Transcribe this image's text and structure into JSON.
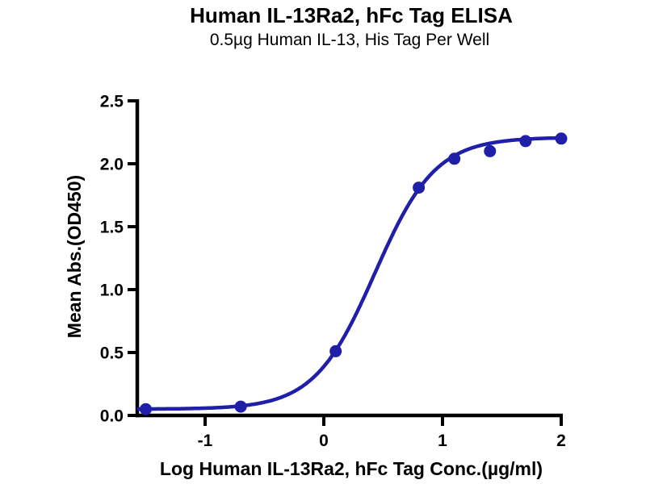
{
  "title": "Human IL-13Ra2, hFc Tag ELISA",
  "subtitle": "0.5µg Human IL-13, His Tag Per Well",
  "chart_data": {
    "type": "scatter",
    "title": "Human IL-13Ra2, hFc Tag ELISA",
    "subtitle": "0.5µg Human IL-13, His Tag Per Well",
    "xlabel": "Log Human IL-13Ra2, hFc Tag Conc.(µg/ml)",
    "ylabel": "Mean Abs.(OD450)",
    "x": [
      -1.5,
      -0.7,
      0.1,
      0.8,
      1.1,
      1.4,
      1.7,
      2.0
    ],
    "y": [
      0.05,
      0.07,
      0.51,
      1.81,
      2.04,
      2.1,
      2.18,
      2.2
    ],
    "fit": {
      "model": "four_parameter_logistic",
      "bottom": 0.05,
      "top": 2.21,
      "logEC50": 0.43,
      "hillslope": 1.7,
      "curve_x_start": -1.56,
      "curve_x_end": 2.0
    },
    "x_ticks": {
      "values": [
        -1,
        0,
        1,
        2
      ],
      "labels": [
        "-1",
        "0",
        "1",
        "2"
      ]
    },
    "y_ticks": {
      "values": [
        0,
        0.5,
        1.0,
        1.5,
        2.0,
        2.5
      ],
      "labels": [
        "0.0",
        "0.5",
        "1.0",
        "1.5",
        "2.0",
        "2.5"
      ]
    },
    "xlim": [
      -1.57,
      2.03
    ],
    "ylim": [
      0,
      2.5
    ],
    "grid": false,
    "legend": null
  },
  "colors": {
    "series": "#1f1faa",
    "axis": "#000000",
    "text": "#000000",
    "background": "#ffffff"
  }
}
